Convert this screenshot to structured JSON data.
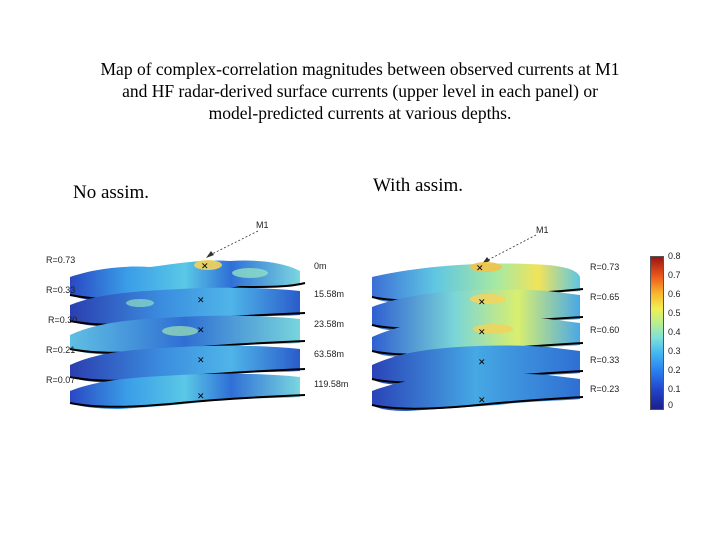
{
  "title": "Map of complex-correlation magnitudes between observed currents at M1 and HF radar-derived surface currents (upper level in each panel) or model-predicted currents at various depths.",
  "title_lines": [
    "Map of complex-correlation magnitudes between observed currents at M1",
    "and HF radar-derived surface currents (upper level in each panel) or",
    "model-predicted currents at various depths."
  ],
  "left_panel": {
    "heading": "No assim.",
    "station_label": "M1",
    "r_values": [
      "R=0.73",
      "R=0.33",
      "R=0.30",
      "R=0.21",
      "R=0.07"
    ],
    "depths": [
      "0m",
      "15.58m",
      "23.58m",
      "63.58m",
      "119.58m"
    ]
  },
  "right_panel": {
    "heading": "With assim.",
    "station_label": "M1",
    "r_values": [
      "R=0.73",
      "R=0.65",
      "R=0.60",
      "R=0.33",
      "R=0.23"
    ]
  },
  "colorbar": {
    "ticks": [
      "0.8",
      "0.7",
      "0.6",
      "0.5",
      "0.4",
      "0.3",
      "0.2",
      "0.1",
      "0"
    ],
    "colors": [
      "#1a1f8a",
      "#2142c8",
      "#2a7ef0",
      "#43b8f2",
      "#7fe1d8",
      "#b6ef92",
      "#f1ef52",
      "#f9b52c",
      "#ee5a1c",
      "#9a1414"
    ]
  }
}
